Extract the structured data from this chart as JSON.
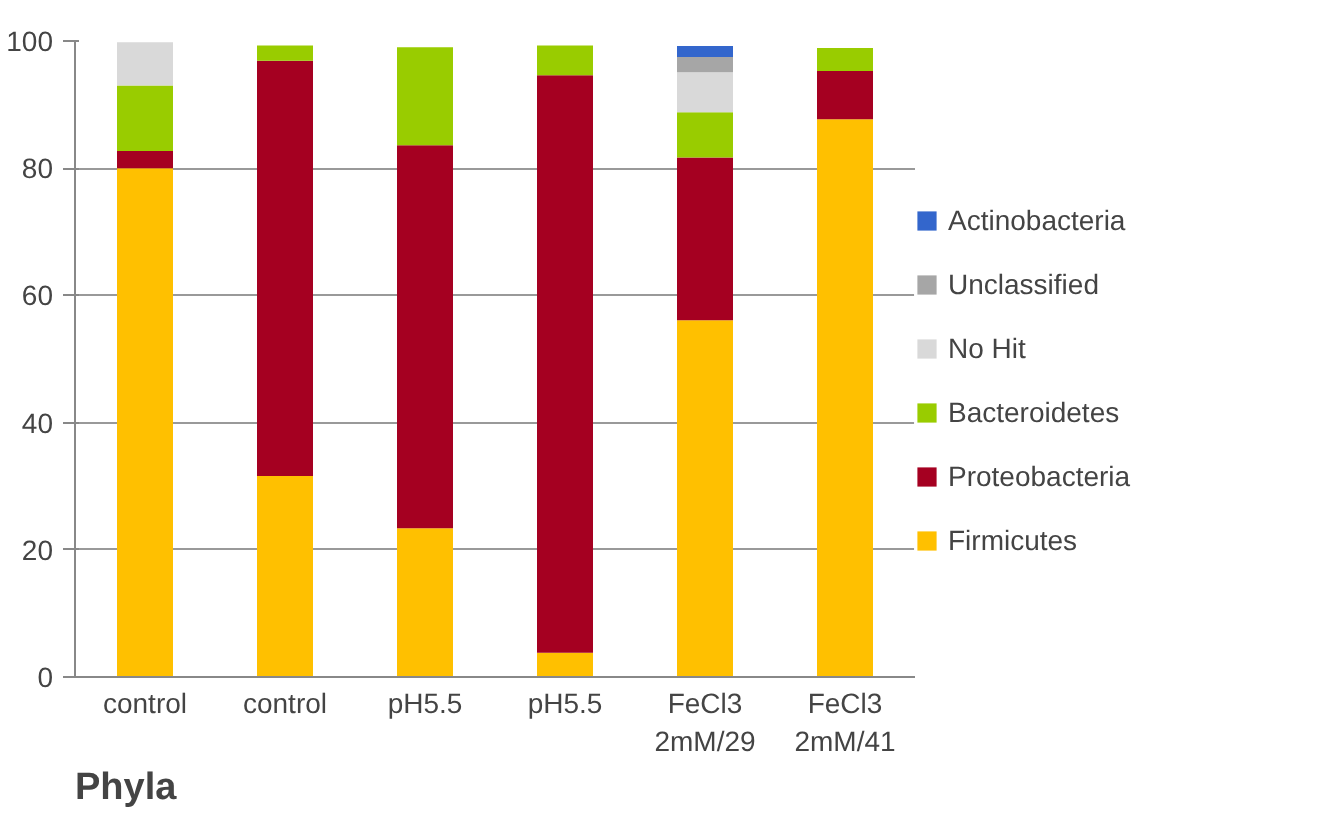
{
  "chart_data": {
    "type": "bar",
    "stacked": true,
    "categories": [
      "control",
      "control",
      "pH5.5",
      "pH5.5",
      "FeCl3\n2mM/29",
      "FeCl3\n2mM/41"
    ],
    "series": [
      {
        "name": "Firmicutes",
        "color": "#ffc000",
        "values": [
          80,
          31.6,
          23.4,
          3.8,
          56.1,
          87.7
        ]
      },
      {
        "name": "Proteobacteria",
        "color": "#a50021",
        "values": [
          2.7,
          65.3,
          60.2,
          90.8,
          25.6,
          7.6
        ]
      },
      {
        "name": "Bacteroidetes",
        "color": "#99cc00",
        "values": [
          10.3,
          2.4,
          15.4,
          4.7,
          7.1,
          3.6
        ]
      },
      {
        "name": "No Hit",
        "color": "#d9d9d9",
        "values": [
          6.8,
          null,
          null,
          null,
          6.3,
          null
        ]
      },
      {
        "name": "Unclassified",
        "color": "#a6a6a6",
        "values": [
          null,
          null,
          null,
          null,
          2.4,
          null
        ]
      },
      {
        "name": "Actinobacteria",
        "color": "#3366cc",
        "values": [
          null,
          null,
          null,
          null,
          1.7,
          null
        ]
      }
    ],
    "ylim": [
      0,
      100
    ],
    "yticks": [
      0,
      20,
      40,
      60,
      80,
      100
    ],
    "grid": "y",
    "legend": "right",
    "annotations": [
      "Phyla"
    ]
  }
}
